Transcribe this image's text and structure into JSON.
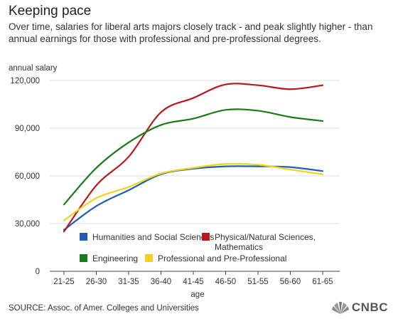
{
  "title": "Keeping pace",
  "subtitle": "Over time, salaries for liberal arts majors closely track - and peak slightly higher - than annual earnings for those with professional and pre-professional degrees.",
  "source": "SOURCE: Assoc. of Amer. Colleges and Universities",
  "logo": {
    "text": "CNBC",
    "icon": "nbc-peacock-icon"
  },
  "chart_data": {
    "type": "line",
    "ylabel": "annual salary",
    "xlabel": "age",
    "categories": [
      "21-25",
      "26-30",
      "31-35",
      "36-40",
      "41-45",
      "46-50",
      "51-55",
      "56-60",
      "61-65"
    ],
    "ylim": [
      0,
      120000
    ],
    "yticks": [
      0,
      30000,
      60000,
      90000,
      120000
    ],
    "ytick_labels": [
      "0",
      "30,000",
      "60,000",
      "90,000",
      "120,000"
    ],
    "grid": "horizontal",
    "legend_position": "inside-bottom",
    "series": [
      {
        "name": "Humanities and Social Sciences",
        "color": "#1f5fb4",
        "values": [
          26000,
          41000,
          51000,
          61000,
          64500,
          66000,
          66000,
          65500,
          63000
        ]
      },
      {
        "name": "Physical/Natural Sciences, Mathematics",
        "color": "#b5191e",
        "values": [
          25000,
          54000,
          72000,
          100000,
          109000,
          117500,
          117000,
          114500,
          117000
        ]
      },
      {
        "name": "Engineering",
        "color": "#1a7a1a",
        "values": [
          42000,
          65000,
          81000,
          92000,
          96000,
          101500,
          101000,
          97000,
          94500
        ]
      },
      {
        "name": "Professional and Pre-Professional",
        "color": "#f2d21b",
        "values": [
          32000,
          46000,
          53000,
          61500,
          65000,
          67500,
          67000,
          64000,
          61000
        ]
      }
    ]
  }
}
